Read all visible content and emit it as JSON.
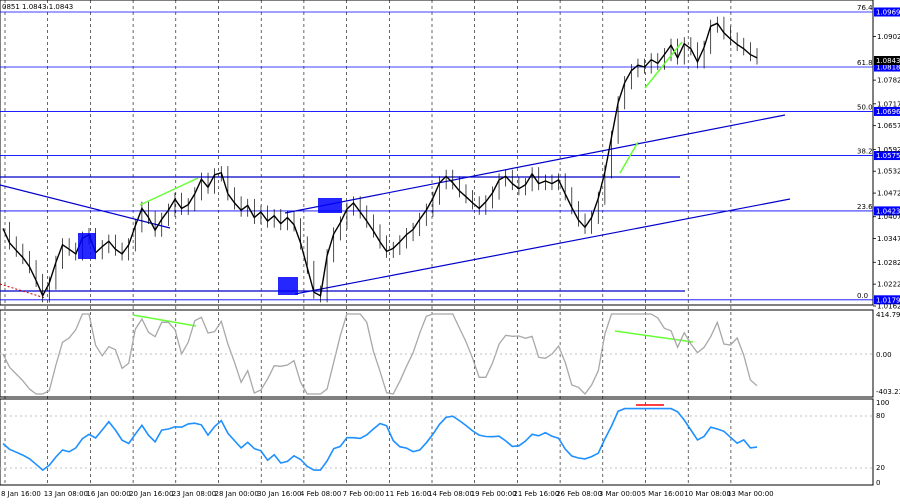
{
  "header": {
    "ohlc_text": "0851 1.0843 1.0843"
  },
  "chart_data": [
    {
      "type": "candlestick",
      "panel": "price",
      "yrange": [
        1.0162,
        1.0969
      ],
      "price_ticks": [
        "1.0902",
        "1.0782",
        "1.0717",
        "1.0657",
        "1.0592",
        "1.0532",
        "1.0472",
        "1.0407",
        "1.0347",
        "1.0282",
        "1.0222",
        "1.0162"
      ],
      "fib_levels": [
        {
          "label": "76.4",
          "value": 1.0969,
          "tag": "1.0969"
        },
        {
          "label": "61.8",
          "value": 1.0818,
          "tag": "1.0818"
        },
        {
          "label": "50.0",
          "value": 1.0696,
          "tag": "1.0696"
        },
        {
          "label": "38.2",
          "value": 1.0575,
          "tag": "1.0575"
        },
        {
          "label": "23.6",
          "value": 1.0423,
          "tag": "1.0423"
        },
        {
          "label": "0.0",
          "value": 1.0179,
          "tag": "1.0179"
        }
      ],
      "current_price": {
        "value": 1.0843,
        "tag": "1.0843"
      },
      "x_labels": [
        "8 Jan 16:00",
        "13 Jan 08:00",
        "16 Jan 00:00",
        "20 Jan 16:00",
        "23 Jan 08:00",
        "28 Jan 00:00",
        "30 Jan 16:00",
        "4 Feb 08:00",
        "7 Feb 00:00",
        "11 Feb 16:00",
        "14 Feb 08:00",
        "19 Feb 00:00",
        "21 Feb 16:00",
        "26 Feb 08:00",
        "3 Mar 00:00",
        "5 Mar 16:00",
        "10 Mar 08:00",
        "13 Mar 00:00"
      ],
      "close_path": [
        1.0375,
        1.0335,
        1.0315,
        1.0295,
        1.027,
        1.0232,
        1.019,
        1.0225,
        1.0282,
        1.033,
        1.0318,
        1.0305,
        1.0348,
        1.0358,
        1.0308,
        1.0325,
        1.034,
        1.0318,
        1.0305,
        1.033,
        1.0382,
        1.043,
        1.0405,
        1.037,
        1.04,
        1.0425,
        1.0455,
        1.043,
        1.044,
        1.047,
        1.051,
        1.0488,
        1.0522,
        1.0528,
        1.047,
        1.0445,
        1.0425,
        1.0438,
        1.0405,
        1.042,
        1.0395,
        1.041,
        1.0388,
        1.0405,
        1.0385,
        1.0335,
        1.0268,
        1.02,
        1.019,
        1.03,
        1.036,
        1.039,
        1.0428,
        1.0445,
        1.042,
        1.0395,
        1.0368,
        1.0338,
        1.0312,
        1.032,
        1.0338,
        1.0358,
        1.0372,
        1.04,
        1.0425,
        1.0458,
        1.05,
        1.0518,
        1.05,
        1.0478,
        1.0462,
        1.0445,
        1.043,
        1.0448,
        1.0472,
        1.0508,
        1.0518,
        1.0498,
        1.0484,
        1.0495,
        1.0525,
        1.0498,
        1.0505,
        1.0498,
        1.0508,
        1.047,
        1.0432,
        1.0398,
        1.0378,
        1.0405,
        1.0458,
        1.053,
        1.0625,
        1.072,
        1.0775,
        1.0808,
        1.0823,
        1.0818,
        1.0838,
        1.0828,
        1.0852,
        1.0878,
        1.0843,
        1.0882,
        1.0868,
        1.0832,
        1.0872,
        1.093,
        1.0938,
        1.0912,
        1.0895,
        1.088,
        1.0868,
        1.0852,
        1.0843
      ],
      "oscillator_1": {
        "max_label": "414.7912",
        "zero_label": "0.00",
        "min_label": "-403.2340",
        "range": [
          -403.234,
          414.7912
        ]
      },
      "oscillator_2": {
        "levels": [
          "100",
          "80",
          "20",
          "0"
        ],
        "range": [
          0,
          100
        ]
      }
    }
  ]
}
